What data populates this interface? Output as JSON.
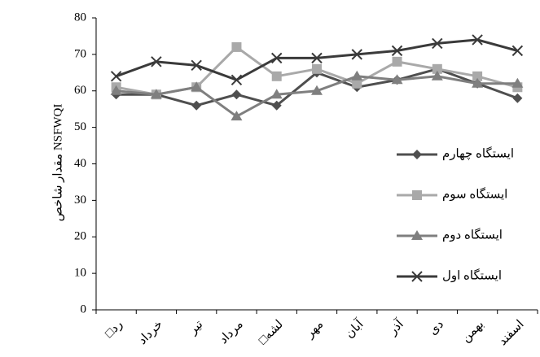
{
  "chart_data": {
    "type": "line",
    "y_label": "مقدار شاخص NSFWQI",
    "categories": [
      "□رد",
      "خرداد",
      "تیر",
      "مرداد",
      "□لشه",
      "مهر",
      "آبان",
      "آذر",
      "دی",
      "بهمن",
      "اسفند"
    ],
    "series": [
      {
        "name": "ایستگاه چهارم",
        "color": "#4f4f4f",
        "marker": "diamond",
        "values": [
          59,
          59,
          56,
          59,
          56,
          65,
          61,
          63,
          66,
          62,
          58
        ]
      },
      {
        "name": "ایستگاه سوم",
        "color": "#a9a9a9",
        "marker": "square",
        "values": [
          61,
          59,
          61,
          72,
          64,
          66,
          62,
          68,
          66,
          64,
          61
        ]
      },
      {
        "name": "ایستگاه دوم",
        "color": "#7f7f7f",
        "marker": "triangle",
        "values": [
          60,
          59,
          61,
          53,
          59,
          60,
          64,
          63,
          64,
          62,
          62
        ]
      },
      {
        "name": "ایستگاه اول",
        "color": "#3a3a3a",
        "marker": "x",
        "values": [
          64,
          68,
          67,
          63,
          69,
          69,
          70,
          71,
          73,
          74,
          71
        ]
      }
    ],
    "ylim": [
      0,
      80
    ],
    "yticks": [
      0,
      10,
      20,
      30,
      40,
      50,
      60,
      70,
      80
    ],
    "legend": "right"
  }
}
